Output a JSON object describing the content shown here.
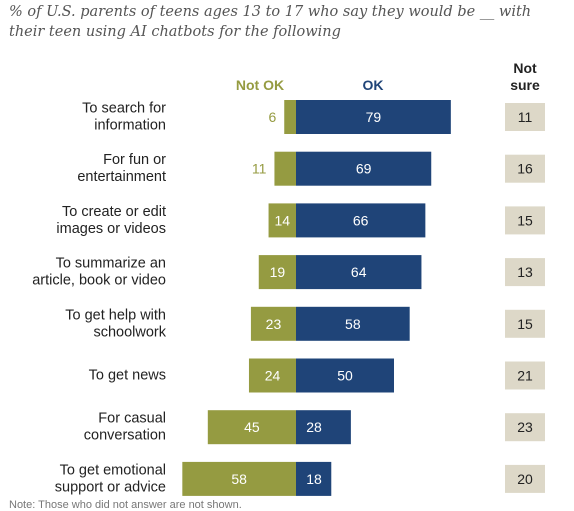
{
  "chart_data": {
    "type": "bar",
    "subtitle": "% of U.S. parents of teens ages 13 to 17 who say they would be __ with their teen using AI chatbots for the following",
    "legend": [
      "Not OK",
      "OK",
      "Not sure"
    ],
    "legend_lines": [
      [
        "Not OK"
      ],
      [
        "OK"
      ],
      [
        "Not",
        "sure"
      ]
    ],
    "categories": [
      "To search for information",
      "For fun or entertainment",
      "To create or edit images or videos",
      "To summarize an article, book or video",
      "To get help with schoolwork",
      "To get news",
      "For casual conversation",
      "To get emotional support or advice"
    ],
    "category_lines": [
      [
        "To search for",
        "information"
      ],
      [
        "For fun or",
        "entertainment"
      ],
      [
        "To create or edit",
        "images or videos"
      ],
      [
        "To summarize an",
        "article, book or video"
      ],
      [
        "To get help with",
        "schoolwork"
      ],
      [
        "To get news"
      ],
      [
        "For casual",
        "conversation"
      ],
      [
        "To get emotional",
        "support or advice"
      ]
    ],
    "series": [
      {
        "name": "Not OK",
        "values": [
          6,
          11,
          14,
          19,
          23,
          24,
          45,
          58
        ]
      },
      {
        "name": "OK",
        "values": [
          79,
          69,
          66,
          64,
          58,
          50,
          28,
          18
        ]
      },
      {
        "name": "Not sure",
        "values": [
          11,
          16,
          15,
          13,
          15,
          21,
          23,
          20
        ]
      }
    ],
    "colors": {
      "not_ok": "#959b41",
      "ok": "#1f4478",
      "not_sure": "#ddd8c8",
      "not_ok_label": "#959b41",
      "ok_label": "#1f4478"
    }
  },
  "note": "Note: Those who did not answer are not shown."
}
